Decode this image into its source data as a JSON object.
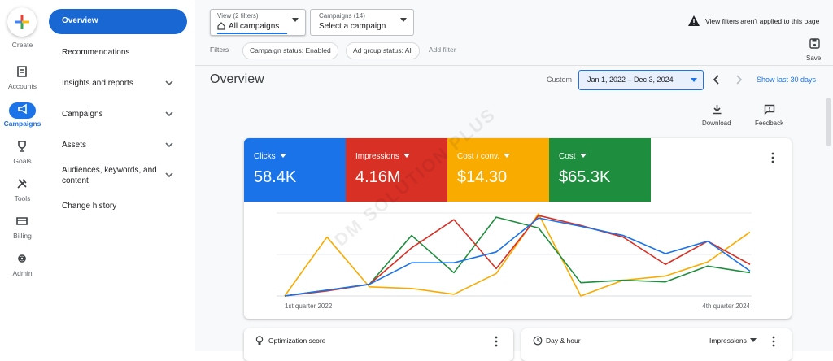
{
  "rail": {
    "create": "Create",
    "items": [
      "Accounts",
      "Campaigns",
      "Goals",
      "Tools",
      "Billing",
      "Admin"
    ],
    "active_index": 1
  },
  "nav": {
    "items": [
      "Overview",
      "Recommendations",
      "Insights and reports",
      "Campaigns",
      "Assets",
      "Audiences, keywords, and content",
      "Change history"
    ]
  },
  "top_bar": {
    "view_label": "View (2 filters)",
    "view_value": "All campaigns",
    "campaigns_label": "Campaigns (14)",
    "campaigns_value": "Select a campaign",
    "warning": "View filters aren't applied to this page",
    "save": "Save"
  },
  "filters": {
    "label": "Filters",
    "chips": [
      "Campaign status: Enabled",
      "Ad group status: All"
    ],
    "add": "Add filter"
  },
  "header": {
    "title": "Overview",
    "range_type": "Custom",
    "date_range": "Jan 1, 2022 – Dec 3, 2024",
    "shortcut": "Show last 30 days",
    "download": "Download",
    "feedback": "Feedback"
  },
  "metric_cards": [
    {
      "label": "Clicks",
      "value": "58.4K",
      "color": "#1a73e8",
      "trend": [
        0,
        7,
        14,
        40,
        40,
        53,
        94,
        84,
        73,
        51,
        66,
        30
      ]
    },
    {
      "label": "Impressions",
      "value": "4.16M",
      "color": "#d93025",
      "trend": [
        0,
        6,
        14,
        58,
        92,
        33,
        97,
        85,
        71,
        38,
        66,
        38
      ]
    },
    {
      "label": "Cost / conv.",
      "value": "$14.30",
      "color": "#f9ab00",
      "trend": [
        0,
        71,
        11,
        9,
        2,
        27,
        99,
        0,
        19,
        24,
        41,
        77
      ]
    },
    {
      "label": "Cost",
      "value": "$65.3K",
      "color": "#1e8e3e",
      "trend": [
        0,
        7,
        14,
        73,
        28,
        95,
        82,
        16,
        19,
        17,
        36,
        28
      ]
    }
  ],
  "chart": {
    "type": "line",
    "ylim": [
      0,
      100
    ],
    "x_labels": [
      "1st quarter 2022",
      null,
      null,
      null,
      null,
      null,
      null,
      null,
      null,
      null,
      null,
      "4th quarter 2024"
    ]
  },
  "bottom_cards": {
    "left_title": "Optimization score",
    "right_title": "Day & hour",
    "right_metric": "Impressions"
  },
  "watermark": "DM SOLUTION PLUS"
}
